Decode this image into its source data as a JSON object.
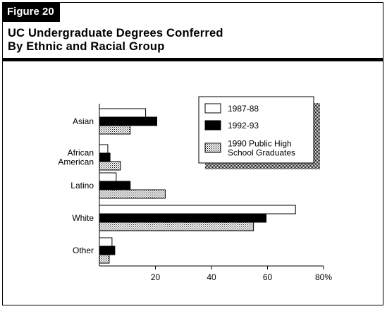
{
  "figure_label": "Figure 20",
  "title_line1": "UC Undergraduate Degrees Conferred",
  "title_line2": "By Ethnic and Racial Group",
  "colors": {
    "series_1987": "#ffffff",
    "series_1992": "#000000",
    "series_1990": "#c8c8c8",
    "stroke": "#000000"
  },
  "chart_data": {
    "type": "bar",
    "orientation": "horizontal",
    "categories": [
      "Asian",
      "African American",
      "Latino",
      "White",
      "Other"
    ],
    "category_lines": [
      [
        "Asian"
      ],
      [
        "African",
        "American"
      ],
      [
        "Latino"
      ],
      [
        "White"
      ],
      [
        "Other"
      ]
    ],
    "series": [
      {
        "name": "1987-88",
        "values": [
          16.5,
          3,
          6,
          70,
          4.5
        ],
        "fill": "white"
      },
      {
        "name": "1992-93",
        "values": [
          20.5,
          3.8,
          11,
          59.5,
          5.5
        ],
        "fill": "black"
      },
      {
        "name": "1990 Public High School Graduates",
        "legend_lines": [
          "1990 Public High",
          "School Graduates"
        ],
        "values": [
          11,
          7.5,
          23.5,
          55,
          3.5
        ],
        "fill": "dotted"
      }
    ],
    "xlim": [
      0,
      80
    ],
    "xticks": [
      20,
      40,
      60
    ],
    "xtick_last_label": "80%",
    "grid": false,
    "legend_position": "top-right"
  }
}
